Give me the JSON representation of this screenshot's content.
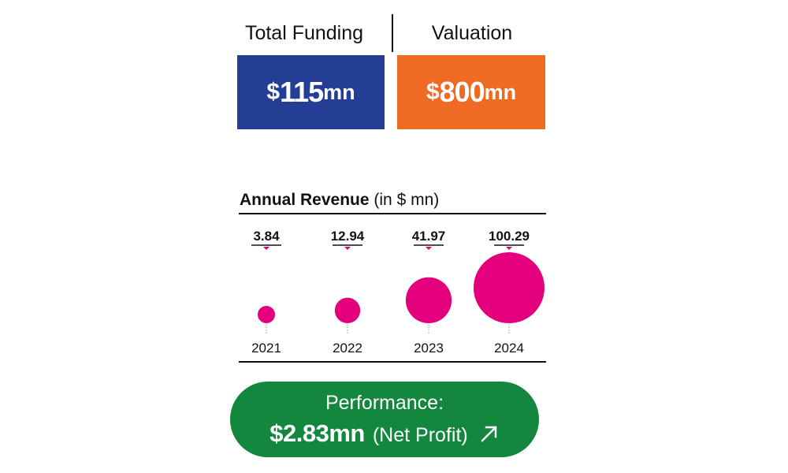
{
  "metrics": {
    "funding": {
      "label": "Total Funding",
      "currency": "$",
      "value": "115",
      "unit": "mn",
      "color": "#243E95"
    },
    "valuation": {
      "label": "Valuation",
      "currency": "$",
      "value": "800",
      "unit": "mn",
      "color": "#EF6A23"
    }
  },
  "chart_data": {
    "type": "scatter",
    "title": "Annual Revenue",
    "title_unit": "(in $ mn)",
    "categories": [
      "2021",
      "2022",
      "2023",
      "2024"
    ],
    "values": [
      3.84,
      12.94,
      41.97,
      100.29
    ],
    "value_labels": [
      "3.84",
      "12.94",
      "41.97",
      "100.29"
    ],
    "bubble_color": "#E4007C",
    "grid": false,
    "legend": "none"
  },
  "performance": {
    "label": "Performance:",
    "value": "$2.83mn",
    "note": "(Net Profit)",
    "trend_icon": "arrow-up-right-icon",
    "color": "#12873D"
  }
}
